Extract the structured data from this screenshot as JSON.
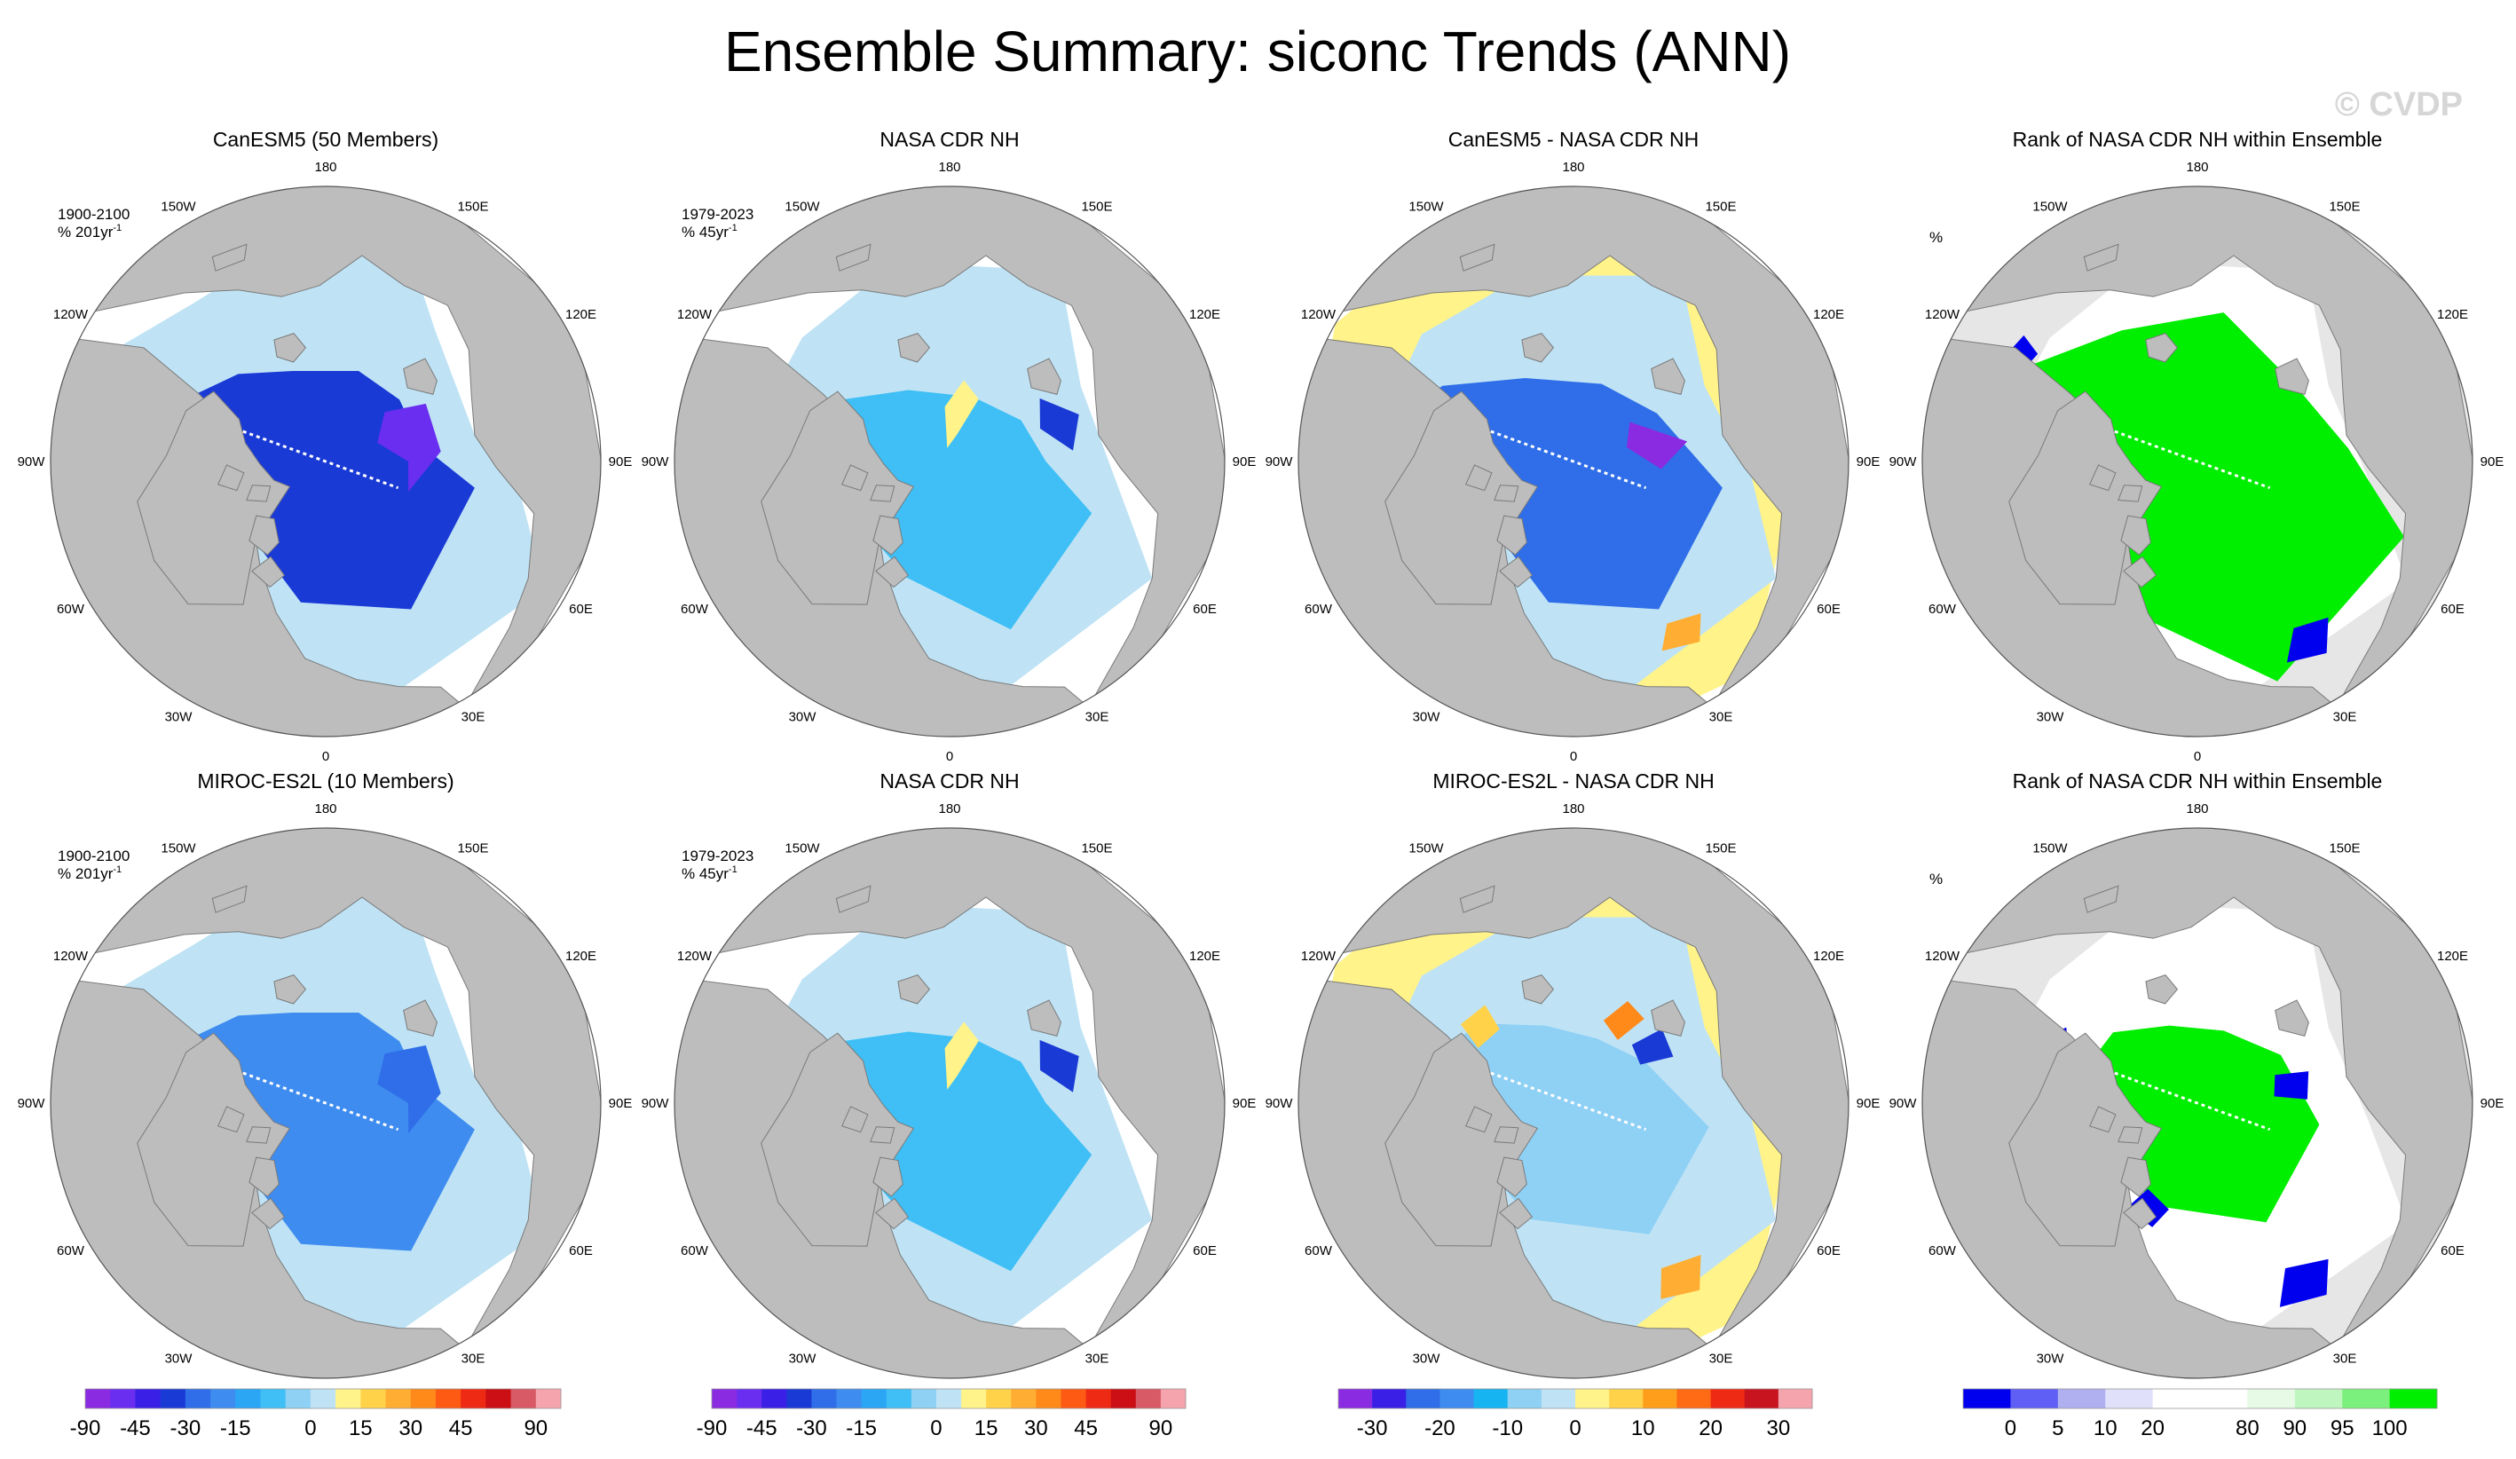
{
  "title": "Ensemble Summary: siconc Trends (ANN)",
  "watermark": "© CVDP",
  "colors": {
    "land": "#bdbdbd",
    "ocean": "#ffffff",
    "outside_range": "#e6e6e6",
    "canesm5_title": "#1f6f8b",
    "miroc_title": "#5a8f5a"
  },
  "longitude_labels": [
    "180",
    "150E",
    "120E",
    "90E",
    "60E",
    "30E",
    "0",
    "30W",
    "60W",
    "90W",
    "120W",
    "150W"
  ],
  "rows": [
    {
      "panels": [
        {
          "title": "CanESM5 (50 Members)",
          "title_color": "#1f6f8b",
          "period": "1900-2100",
          "units": "% 201yr",
          "units_exp": "-1",
          "kind": "model"
        },
        {
          "title": "NASA CDR NH",
          "period": "1979-2023",
          "units": "% 45yr",
          "units_exp": "-1",
          "kind": "obs"
        },
        {
          "title": "CanESM5 - NASA CDR NH",
          "kind": "diff"
        },
        {
          "title": "Rank of NASA CDR NH within Ensemble",
          "units": "%",
          "kind": "rank"
        }
      ]
    },
    {
      "panels": [
        {
          "title": "MIROC-ES2L (10 Members)",
          "title_color": "#5a8f5a",
          "period": "1900-2100",
          "units": "% 201yr",
          "units_exp": "-1",
          "kind": "model"
        },
        {
          "title": "NASA CDR NH",
          "period": "1979-2023",
          "units": "% 45yr",
          "units_exp": "-1",
          "kind": "obs"
        },
        {
          "title": "MIROC-ES2L - NASA CDR NH",
          "kind": "diff"
        },
        {
          "title": "Rank of NASA CDR NH within Ensemble",
          "units": "%",
          "kind": "rank"
        }
      ]
    }
  ],
  "colorbars": [
    {
      "name": "trend",
      "colors": [
        "#8a2be2",
        "#6a2ef0",
        "#3a20e6",
        "#1a3ad6",
        "#2f6ee8",
        "#3f8cf0",
        "#2aa6f5",
        "#3fbff5",
        "#8fd0f5",
        "#bfe3f5",
        "#fff38a",
        "#ffd24a",
        "#ffae33",
        "#ff8a1a",
        "#ff5a14",
        "#ee2a14",
        "#cc0f14",
        "#d85a66",
        "#f5a3ac"
      ],
      "labels": [
        "-90",
        "-45",
        "-30",
        "-15",
        "0",
        "15",
        "30",
        "45",
        "90"
      ],
      "label_positions": [
        0,
        2,
        4,
        6,
        9,
        11,
        13,
        15,
        18
      ]
    },
    {
      "name": "diff",
      "colors": [
        "#8a2be2",
        "#3a20e6",
        "#2f6ee8",
        "#3f8cf0",
        "#16b4f0",
        "#8fd0f5",
        "#bfe3f5",
        "#fff38a",
        "#ffd24a",
        "#ff9e1a",
        "#ff6a14",
        "#ee2a14",
        "#c8141e",
        "#f5a3ac"
      ],
      "labels": [
        "-30",
        "-20",
        "-10",
        "0",
        "10",
        "20",
        "30"
      ],
      "label_positions": [
        1,
        3,
        5,
        7,
        9,
        11,
        13
      ]
    },
    {
      "name": "rank",
      "colors": [
        "#0000ee",
        "#5f5ff5",
        "#b0b0f0",
        "#e0e0fa",
        "#ffffff",
        "#ffffff",
        "#e6fae6",
        "#bff5bf",
        "#7cf07c",
        "#00ee00"
      ],
      "labels": [
        "0",
        "5",
        "10",
        "20",
        "80",
        "90",
        "95",
        "100"
      ],
      "label_positions": [
        1,
        2,
        3,
        4,
        6,
        7,
        8,
        9
      ]
    }
  ]
}
